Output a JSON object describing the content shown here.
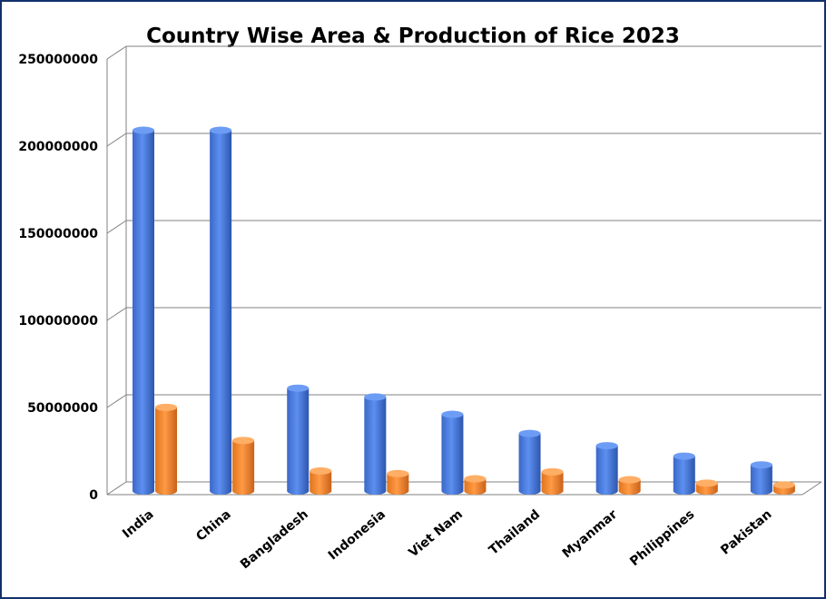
{
  "chart_data": {
    "type": "bar",
    "title": "Country Wise Area & Production of Rice 2023",
    "categories": [
      "India",
      "China",
      "Bangladesh",
      "Indonesia",
      "Viet Nam",
      "Thailand",
      "Myanmar",
      "Philippines",
      "Pakistan"
    ],
    "series": [
      {
        "values": [
          207000000,
          207000000,
          59000000,
          54000000,
          44000000,
          33000000,
          26000000,
          20000000,
          15000000
        ],
        "color": "#4a7ee0"
      },
      {
        "values": [
          48000000,
          29000000,
          11500000,
          10000000,
          7000000,
          11000000,
          6500000,
          4500000,
          3500000
        ],
        "color": "#f58a30"
      }
    ],
    "yticks": [
      "0",
      "50000000",
      "100000000",
      "150000000",
      "200000000",
      "250000000"
    ],
    "ylim": [
      0,
      250000000
    ],
    "grid": true,
    "legend": "none"
  }
}
